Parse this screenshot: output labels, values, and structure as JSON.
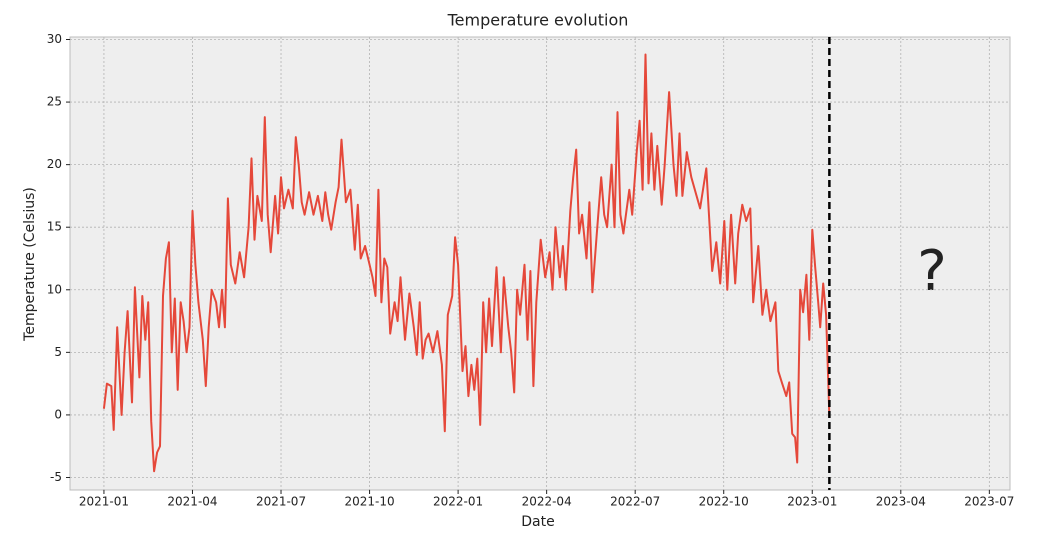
{
  "chart_data": {
    "type": "line",
    "title": "Temperature evolution",
    "x_label": "Date",
    "y_label": "Temperature (Celsius)",
    "annotation": "?",
    "color": "#e5483a",
    "vline": {
      "x": 24.58,
      "color": "#000000",
      "style": "dashed"
    },
    "xlim": [
      -1.15,
      30.7
    ],
    "ylim": [
      -6,
      30.2
    ],
    "xticks": [
      {
        "value": 0,
        "label": "2021-01"
      },
      {
        "value": 3,
        "label": "2021-04"
      },
      {
        "value": 6,
        "label": "2021-07"
      },
      {
        "value": 9,
        "label": "2021-10"
      },
      {
        "value": 12,
        "label": "2022-01"
      },
      {
        "value": 15,
        "label": "2022-04"
      },
      {
        "value": 18,
        "label": "2022-07"
      },
      {
        "value": 21,
        "label": "2022-10"
      },
      {
        "value": 24,
        "label": "2023-01"
      },
      {
        "value": 27,
        "label": "2023-04"
      },
      {
        "value": 30,
        "label": "2023-07"
      }
    ],
    "yticks": [
      -5,
      0,
      5,
      10,
      15,
      20,
      25,
      30
    ],
    "grid": true,
    "x": [
      0,
      0.1,
      0.25,
      0.33,
      0.45,
      0.6,
      0.7,
      0.8,
      0.95,
      1.05,
      1.2,
      1.3,
      1.4,
      1.5,
      1.6,
      1.7,
      1.8,
      1.9,
      2.0,
      2.1,
      2.2,
      2.3,
      2.4,
      2.5,
      2.6,
      2.7,
      2.8,
      2.9,
      3.0,
      3.1,
      3.2,
      3.35,
      3.45,
      3.55,
      3.65,
      3.8,
      3.9,
      4.0,
      4.1,
      4.2,
      4.3,
      4.45,
      4.6,
      4.75,
      4.9,
      5.0,
      5.1,
      5.2,
      5.35,
      5.45,
      5.55,
      5.65,
      5.8,
      5.9,
      6.0,
      6.1,
      6.25,
      6.4,
      6.5,
      6.6,
      6.7,
      6.8,
      6.95,
      7.1,
      7.25,
      7.4,
      7.5,
      7.6,
      7.7,
      7.85,
      7.95,
      8.05,
      8.2,
      8.35,
      8.5,
      8.6,
      8.7,
      8.85,
      9.0,
      9.1,
      9.2,
      9.3,
      9.4,
      9.5,
      9.6,
      9.7,
      9.85,
      9.95,
      10.05,
      10.2,
      10.35,
      10.5,
      10.6,
      10.7,
      10.8,
      10.9,
      11.0,
      11.15,
      11.3,
      11.45,
      11.55,
      11.65,
      11.8,
      11.9,
      12.0,
      12.15,
      12.25,
      12.35,
      12.45,
      12.55,
      12.65,
      12.75,
      12.85,
      12.95,
      13.05,
      13.15,
      13.3,
      13.45,
      13.55,
      13.7,
      13.8,
      13.9,
      14.0,
      14.1,
      14.25,
      14.35,
      14.45,
      14.55,
      14.65,
      14.8,
      14.95,
      15.1,
      15.2,
      15.3,
      15.45,
      15.55,
      15.65,
      15.8,
      15.9,
      16.0,
      16.1,
      16.2,
      16.35,
      16.45,
      16.55,
      16.7,
      16.85,
      16.95,
      17.05,
      17.2,
      17.3,
      17.4,
      17.5,
      17.6,
      17.8,
      17.9,
      18.05,
      18.15,
      18.25,
      18.35,
      18.45,
      18.55,
      18.65,
      18.75,
      18.9,
      19.0,
      19.15,
      19.3,
      19.4,
      19.5,
      19.6,
      19.75,
      19.9,
      20.2,
      20.41,
      20.61,
      20.75,
      20.88,
      21.02,
      21.12,
      21.25,
      21.39,
      21.49,
      21.63,
      21.76,
      21.9,
      22.0,
      22.17,
      22.31,
      22.44,
      22.58,
      22.75,
      22.85,
      22.98,
      23.12,
      23.22,
      23.32,
      23.42,
      23.49,
      23.59,
      23.69,
      23.8,
      23.9,
      24.0,
      24.1,
      24.2,
      24.27,
      24.37,
      24.47,
      24.58
    ],
    "values": [
      0.5,
      2.5,
      2.3,
      -1.2,
      7,
      0,
      5,
      8.3,
      1,
      10.2,
      3,
      9.5,
      6,
      9,
      -0.5,
      -4.5,
      -3,
      -2.5,
      9.5,
      12.5,
      13.8,
      5,
      9.3,
      2,
      9,
      7.5,
      5,
      7,
      16.3,
      12,
      9,
      6,
      2.3,
      7,
      10,
      9,
      7,
      10,
      7,
      17.3,
      12,
      10.5,
      13,
      11,
      15,
      20.5,
      14,
      17.5,
      15.5,
      23.8,
      16,
      13,
      17.5,
      14.5,
      19,
      16.5,
      18,
      16.5,
      22.2,
      20,
      17,
      16,
      17.8,
      16,
      17.5,
      15.5,
      17.8,
      16,
      14.8,
      17,
      18.2,
      22,
      17,
      18,
      13.2,
      16.8,
      12.5,
      13.5,
      12,
      11,
      9.5,
      18,
      9,
      12.5,
      11.8,
      6.5,
      9,
      7.5,
      11,
      6,
      9.7,
      7,
      4.8,
      9,
      4.5,
      6,
      6.5,
      5,
      6.7,
      4,
      -1.3,
      8,
      9.5,
      14.2,
      12,
      3.5,
      5.5,
      1.5,
      4,
      2,
      4.5,
      -0.8,
      9,
      5,
      9.3,
      5.5,
      11.8,
      5,
      11,
      7,
      5,
      1.8,
      10,
      8,
      12,
      6,
      11.5,
      2.3,
      9,
      14,
      11,
      13,
      10,
      15,
      11,
      13.5,
      10,
      16.3,
      19,
      21.2,
      14.5,
      16,
      12.5,
      17,
      9.8,
      14.5,
      19,
      16,
      15,
      20,
      15,
      24.2,
      16,
      14.5,
      18,
      16,
      21,
      23.5,
      18,
      28.8,
      18.5,
      22.5,
      18,
      21.5,
      16.8,
      20,
      25.8,
      20,
      17.5,
      22.5,
      17.5,
      21,
      19,
      16.5,
      19.7,
      11.5,
      13.8,
      10.5,
      15.5,
      10,
      16,
      10.5,
      14.5,
      16.8,
      15.5,
      16.5,
      9,
      13.5,
      8,
      10,
      7.5,
      9,
      3.5,
      2.5,
      1.5,
      2.6,
      -1.5,
      -1.8,
      -3.8,
      10,
      8.2,
      11.2,
      6,
      14.8,
      11.8,
      9,
      7,
      10.5,
      8,
      -0.2
    ]
  }
}
